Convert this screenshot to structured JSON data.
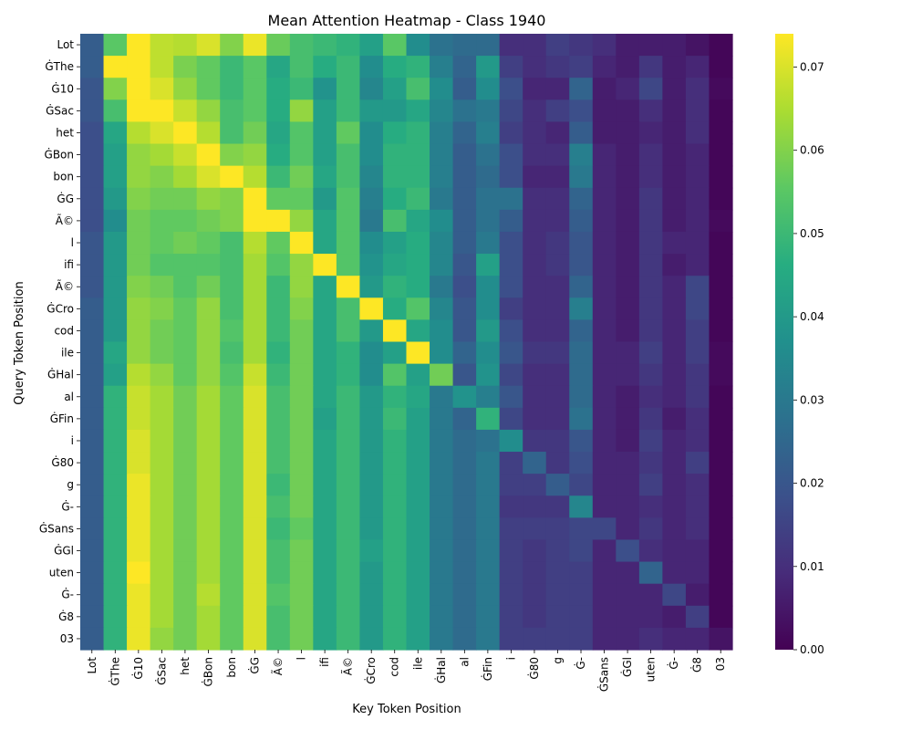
{
  "chart_data": {
    "type": "heatmap",
    "title": "Mean Attention Heatmap - Class 1940",
    "xlabel": "Key Token Position",
    "ylabel": "Query Token Position",
    "tokens": [
      "Lot",
      "ĠThe",
      "Ġ10",
      "ĠSac",
      "het",
      "ĠBon",
      "bon",
      "ĠG",
      "Ã©",
      "l",
      "ifi",
      "Ã©",
      "ĠCro",
      "cod",
      "ile",
      "ĠHal",
      "al",
      "ĠFin",
      "i",
      "Ġ80",
      "g",
      "Ġ-",
      "ĠSans",
      "ĠGl",
      "uten",
      "Ġ-",
      "Ġ8",
      "03"
    ],
    "colormap": "viridis",
    "colorbar": {
      "min": 0.0,
      "max": 0.074,
      "ticks": [
        "0.00",
        "0.01",
        "0.02",
        "0.03",
        "0.04",
        "0.05",
        "0.06",
        "0.07"
      ]
    },
    "matrix": [
      [
        0.022,
        0.055,
        0.074,
        0.067,
        0.066,
        0.07,
        0.06,
        0.072,
        0.057,
        0.052,
        0.05,
        0.048,
        0.042,
        0.055,
        0.036,
        0.028,
        0.026,
        0.026,
        0.01,
        0.01,
        0.014,
        0.012,
        0.01,
        0.006,
        0.006,
        0.006,
        0.004,
        0.001
      ],
      [
        0.022,
        0.074,
        0.074,
        0.067,
        0.059,
        0.056,
        0.05,
        0.055,
        0.044,
        0.052,
        0.046,
        0.05,
        0.036,
        0.046,
        0.048,
        0.032,
        0.024,
        0.04,
        0.014,
        0.01,
        0.012,
        0.014,
        0.008,
        0.006,
        0.012,
        0.006,
        0.008,
        0.001
      ],
      [
        0.02,
        0.06,
        0.074,
        0.07,
        0.062,
        0.056,
        0.05,
        0.055,
        0.046,
        0.05,
        0.038,
        0.05,
        0.034,
        0.042,
        0.052,
        0.036,
        0.022,
        0.036,
        0.018,
        0.008,
        0.008,
        0.024,
        0.006,
        0.008,
        0.016,
        0.006,
        0.01,
        0.002
      ],
      [
        0.02,
        0.052,
        0.074,
        0.074,
        0.068,
        0.062,
        0.052,
        0.055,
        0.046,
        0.062,
        0.042,
        0.05,
        0.04,
        0.04,
        0.044,
        0.034,
        0.028,
        0.03,
        0.016,
        0.01,
        0.014,
        0.018,
        0.006,
        0.006,
        0.01,
        0.006,
        0.01,
        0.001
      ],
      [
        0.018,
        0.044,
        0.066,
        0.07,
        0.074,
        0.066,
        0.052,
        0.058,
        0.044,
        0.054,
        0.042,
        0.056,
        0.036,
        0.046,
        0.048,
        0.032,
        0.024,
        0.032,
        0.014,
        0.01,
        0.008,
        0.022,
        0.006,
        0.006,
        0.008,
        0.006,
        0.01,
        0.001
      ],
      [
        0.018,
        0.042,
        0.062,
        0.064,
        0.068,
        0.074,
        0.06,
        0.062,
        0.046,
        0.054,
        0.042,
        0.052,
        0.036,
        0.048,
        0.048,
        0.032,
        0.022,
        0.028,
        0.018,
        0.01,
        0.01,
        0.032,
        0.008,
        0.006,
        0.01,
        0.006,
        0.008,
        0.001
      ],
      [
        0.018,
        0.042,
        0.062,
        0.06,
        0.064,
        0.07,
        0.074,
        0.066,
        0.05,
        0.058,
        0.044,
        0.052,
        0.034,
        0.048,
        0.048,
        0.032,
        0.022,
        0.026,
        0.018,
        0.008,
        0.008,
        0.03,
        0.008,
        0.006,
        0.01,
        0.006,
        0.008,
        0.001
      ],
      [
        0.018,
        0.04,
        0.06,
        0.058,
        0.058,
        0.062,
        0.06,
        0.074,
        0.056,
        0.056,
        0.04,
        0.054,
        0.032,
        0.046,
        0.05,
        0.03,
        0.022,
        0.028,
        0.028,
        0.01,
        0.01,
        0.024,
        0.008,
        0.006,
        0.012,
        0.006,
        0.008,
        0.001
      ],
      [
        0.018,
        0.036,
        0.058,
        0.056,
        0.056,
        0.058,
        0.06,
        0.074,
        0.074,
        0.062,
        0.044,
        0.054,
        0.03,
        0.052,
        0.044,
        0.036,
        0.022,
        0.028,
        0.022,
        0.01,
        0.01,
        0.022,
        0.008,
        0.006,
        0.012,
        0.006,
        0.008,
        0.002
      ],
      [
        0.02,
        0.04,
        0.058,
        0.056,
        0.058,
        0.056,
        0.052,
        0.066,
        0.056,
        0.074,
        0.044,
        0.054,
        0.036,
        0.042,
        0.046,
        0.034,
        0.022,
        0.03,
        0.018,
        0.01,
        0.012,
        0.02,
        0.008,
        0.006,
        0.012,
        0.008,
        0.008,
        0.001
      ],
      [
        0.02,
        0.04,
        0.058,
        0.054,
        0.054,
        0.054,
        0.052,
        0.064,
        0.054,
        0.062,
        0.074,
        0.054,
        0.038,
        0.044,
        0.046,
        0.034,
        0.02,
        0.042,
        0.018,
        0.01,
        0.012,
        0.02,
        0.008,
        0.006,
        0.012,
        0.006,
        0.008,
        0.001
      ],
      [
        0.02,
        0.04,
        0.06,
        0.058,
        0.054,
        0.058,
        0.052,
        0.064,
        0.05,
        0.062,
        0.044,
        0.074,
        0.04,
        0.048,
        0.046,
        0.03,
        0.018,
        0.036,
        0.018,
        0.01,
        0.01,
        0.024,
        0.008,
        0.006,
        0.012,
        0.008,
        0.016,
        0.001
      ],
      [
        0.022,
        0.04,
        0.062,
        0.06,
        0.056,
        0.062,
        0.052,
        0.064,
        0.05,
        0.06,
        0.044,
        0.052,
        0.074,
        0.046,
        0.054,
        0.034,
        0.02,
        0.036,
        0.014,
        0.01,
        0.01,
        0.032,
        0.008,
        0.006,
        0.012,
        0.008,
        0.016,
        0.001
      ],
      [
        0.022,
        0.04,
        0.062,
        0.058,
        0.056,
        0.062,
        0.054,
        0.064,
        0.05,
        0.058,
        0.044,
        0.052,
        0.04,
        0.074,
        0.044,
        0.036,
        0.02,
        0.04,
        0.018,
        0.01,
        0.01,
        0.024,
        0.008,
        0.006,
        0.012,
        0.008,
        0.014,
        0.001
      ],
      [
        0.022,
        0.044,
        0.062,
        0.058,
        0.056,
        0.062,
        0.052,
        0.064,
        0.048,
        0.058,
        0.044,
        0.048,
        0.036,
        0.042,
        0.074,
        0.036,
        0.024,
        0.036,
        0.02,
        0.012,
        0.012,
        0.026,
        0.008,
        0.008,
        0.014,
        0.008,
        0.014,
        0.002
      ],
      [
        0.022,
        0.042,
        0.066,
        0.062,
        0.056,
        0.062,
        0.054,
        0.068,
        0.05,
        0.058,
        0.044,
        0.048,
        0.036,
        0.054,
        0.042,
        0.058,
        0.02,
        0.038,
        0.016,
        0.01,
        0.01,
        0.026,
        0.008,
        0.008,
        0.012,
        0.008,
        0.012,
        0.002
      ],
      [
        0.022,
        0.048,
        0.068,
        0.064,
        0.058,
        0.064,
        0.056,
        0.07,
        0.052,
        0.058,
        0.044,
        0.05,
        0.04,
        0.048,
        0.044,
        0.03,
        0.038,
        0.032,
        0.02,
        0.01,
        0.01,
        0.026,
        0.008,
        0.006,
        0.01,
        0.008,
        0.012,
        0.001
      ],
      [
        0.022,
        0.048,
        0.068,
        0.064,
        0.058,
        0.064,
        0.056,
        0.07,
        0.052,
        0.058,
        0.042,
        0.05,
        0.04,
        0.05,
        0.042,
        0.03,
        0.024,
        0.048,
        0.016,
        0.01,
        0.01,
        0.028,
        0.008,
        0.006,
        0.012,
        0.006,
        0.01,
        0.001
      ],
      [
        0.022,
        0.048,
        0.07,
        0.064,
        0.058,
        0.064,
        0.056,
        0.07,
        0.052,
        0.058,
        0.044,
        0.05,
        0.04,
        0.048,
        0.042,
        0.03,
        0.026,
        0.028,
        0.036,
        0.012,
        0.012,
        0.02,
        0.008,
        0.006,
        0.014,
        0.008,
        0.01,
        0.001
      ],
      [
        0.022,
        0.048,
        0.07,
        0.064,
        0.058,
        0.064,
        0.056,
        0.07,
        0.052,
        0.058,
        0.044,
        0.05,
        0.04,
        0.048,
        0.042,
        0.03,
        0.026,
        0.03,
        0.014,
        0.024,
        0.012,
        0.018,
        0.008,
        0.008,
        0.012,
        0.008,
        0.014,
        0.001
      ],
      [
        0.022,
        0.048,
        0.072,
        0.064,
        0.058,
        0.064,
        0.056,
        0.07,
        0.05,
        0.058,
        0.044,
        0.05,
        0.04,
        0.048,
        0.042,
        0.03,
        0.026,
        0.03,
        0.014,
        0.014,
        0.022,
        0.016,
        0.008,
        0.008,
        0.014,
        0.008,
        0.01,
        0.001
      ],
      [
        0.022,
        0.048,
        0.072,
        0.064,
        0.058,
        0.064,
        0.056,
        0.07,
        0.052,
        0.058,
        0.044,
        0.05,
        0.04,
        0.048,
        0.042,
        0.03,
        0.026,
        0.03,
        0.012,
        0.012,
        0.012,
        0.034,
        0.008,
        0.008,
        0.01,
        0.008,
        0.01,
        0.001
      ],
      [
        0.022,
        0.048,
        0.072,
        0.064,
        0.058,
        0.064,
        0.056,
        0.07,
        0.05,
        0.056,
        0.044,
        0.05,
        0.04,
        0.048,
        0.042,
        0.03,
        0.026,
        0.03,
        0.014,
        0.014,
        0.014,
        0.016,
        0.016,
        0.008,
        0.012,
        0.008,
        0.01,
        0.001
      ],
      [
        0.022,
        0.048,
        0.072,
        0.064,
        0.058,
        0.064,
        0.056,
        0.07,
        0.052,
        0.058,
        0.044,
        0.05,
        0.042,
        0.048,
        0.042,
        0.03,
        0.026,
        0.03,
        0.014,
        0.012,
        0.014,
        0.016,
        0.008,
        0.018,
        0.01,
        0.008,
        0.008,
        0.001
      ],
      [
        0.022,
        0.048,
        0.074,
        0.064,
        0.058,
        0.064,
        0.056,
        0.07,
        0.052,
        0.058,
        0.044,
        0.05,
        0.04,
        0.048,
        0.042,
        0.03,
        0.026,
        0.03,
        0.014,
        0.012,
        0.014,
        0.014,
        0.008,
        0.008,
        0.024,
        0.008,
        0.008,
        0.001
      ],
      [
        0.022,
        0.048,
        0.072,
        0.064,
        0.058,
        0.066,
        0.056,
        0.07,
        0.054,
        0.058,
        0.044,
        0.05,
        0.04,
        0.048,
        0.042,
        0.03,
        0.026,
        0.03,
        0.014,
        0.012,
        0.014,
        0.014,
        0.008,
        0.008,
        0.008,
        0.016,
        0.006,
        0.001
      ],
      [
        0.022,
        0.048,
        0.072,
        0.064,
        0.058,
        0.064,
        0.056,
        0.07,
        0.052,
        0.058,
        0.044,
        0.05,
        0.04,
        0.048,
        0.042,
        0.03,
        0.026,
        0.03,
        0.014,
        0.012,
        0.014,
        0.014,
        0.008,
        0.008,
        0.008,
        0.006,
        0.014,
        0.001
      ],
      [
        0.022,
        0.048,
        0.072,
        0.062,
        0.058,
        0.064,
        0.056,
        0.07,
        0.052,
        0.058,
        0.044,
        0.05,
        0.04,
        0.048,
        0.042,
        0.03,
        0.026,
        0.03,
        0.014,
        0.014,
        0.014,
        0.014,
        0.008,
        0.008,
        0.01,
        0.008,
        0.008,
        0.004
      ]
    ]
  }
}
